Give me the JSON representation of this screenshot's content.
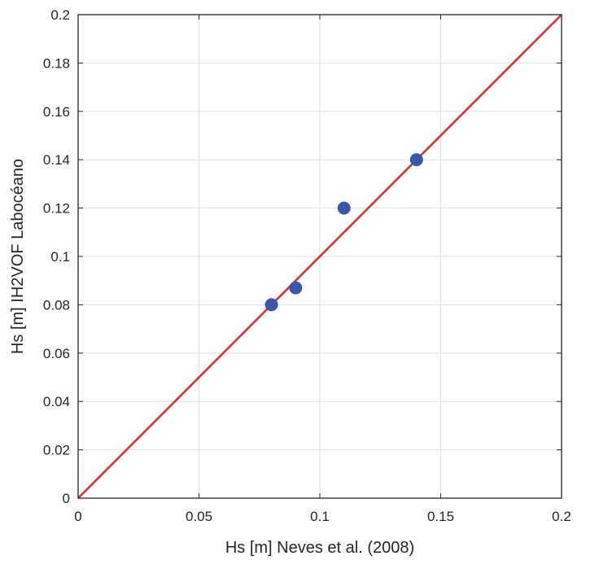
{
  "chart_data": {
    "type": "scatter",
    "title": "",
    "xlabel": "Hs [m] Neves et al. (2008)",
    "ylabel": "Hs [m] IH2VOF Labocéano",
    "xlim": [
      0,
      0.2
    ],
    "ylim": [
      0,
      0.2
    ],
    "x_ticks": [
      "0",
      "0.05",
      "0.1",
      "0.15",
      "0.2"
    ],
    "y_ticks": [
      "0",
      "0.02",
      "0.04",
      "0.06",
      "0.08",
      "0.1",
      "0.12",
      "0.14",
      "0.16",
      "0.18",
      "0.2"
    ],
    "grid": true,
    "series": [
      {
        "marker": "filled-circle",
        "color": "#3a56a8",
        "x": [
          0.08,
          0.09,
          0.11,
          0.14
        ],
        "y": [
          0.08,
          0.087,
          0.12,
          0.14
        ]
      }
    ],
    "reference_line": {
      "color": "#e0302a",
      "x": [
        0,
        0.2
      ],
      "y": [
        0,
        0.2
      ]
    }
  }
}
